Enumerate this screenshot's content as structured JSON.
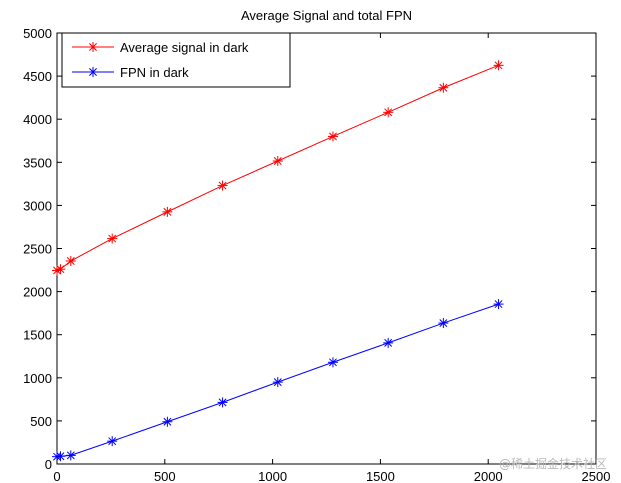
{
  "chart_data": {
    "type": "line",
    "title": "Average Signal and total FPN",
    "xlabel": "",
    "ylabel": "",
    "xlim": [
      0,
      2500
    ],
    "ylim": [
      0,
      5000
    ],
    "xticks": [
      0,
      500,
      1000,
      1500,
      2000,
      2500
    ],
    "yticks": [
      0,
      500,
      1000,
      1500,
      2000,
      2500,
      3000,
      3500,
      4000,
      4500,
      5000
    ],
    "grid": false,
    "legend_position": "top-left",
    "marker": "asterisk",
    "series": [
      {
        "name": "Average signal in dark",
        "color": "#ff0000",
        "x": [
          0,
          16,
          64,
          256,
          512,
          768,
          1024,
          1280,
          1536,
          1792,
          2048
        ],
        "y": [
          2245,
          2260,
          2355,
          2615,
          2925,
          3230,
          3515,
          3800,
          4080,
          4365,
          4625
        ]
      },
      {
        "name": "FPN in dark",
        "color": "#0000ff",
        "x": [
          0,
          16,
          64,
          256,
          512,
          768,
          1024,
          1280,
          1536,
          1792,
          2048
        ],
        "y": [
          85,
          90,
          100,
          265,
          490,
          715,
          950,
          1180,
          1405,
          1635,
          1855
        ]
      }
    ]
  },
  "watermark": "@稀土掘金技术社区"
}
